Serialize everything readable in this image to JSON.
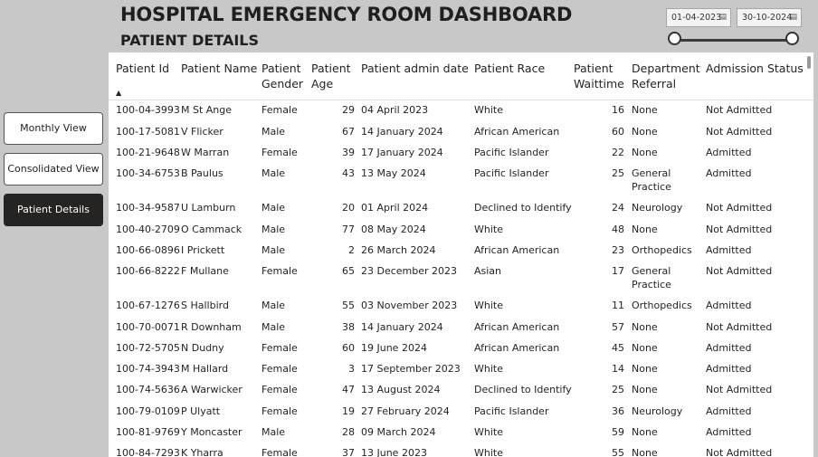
{
  "header": {
    "title": "HOSPITAL EMERGENCY ROOM DASHBOARD",
    "subtitle": "PATIENT DETAILS"
  },
  "date_range": {
    "start": "01-04-2023",
    "end": "30-10-2024",
    "calendar_icon": "calendar-icon"
  },
  "nav": {
    "monthly": "Monthly View",
    "consolidated": "Consolidated View",
    "patient_details": "Patient Details"
  },
  "table": {
    "columns": [
      "Patient Id",
      "Patient Name",
      "Patient Gender",
      "Patient Age",
      "Patient admin date",
      "Patient Race",
      "Patient Waittime",
      "Department Referral",
      "Admission Status"
    ],
    "rows": [
      [
        "100-04-3993",
        "M St Ange",
        "Female",
        "29",
        "04 April 2023",
        "White",
        "16",
        "None",
        "Not Admitted"
      ],
      [
        "100-17-5081",
        "V Flicker",
        "Male",
        "67",
        "14 January 2024",
        "African American",
        "60",
        "None",
        "Not Admitted"
      ],
      [
        "100-21-9648",
        "W Marran",
        "Female",
        "39",
        "17 January 2024",
        "Pacific Islander",
        "22",
        "None",
        "Admitted"
      ],
      [
        "100-34-6753",
        "B Paulus",
        "Male",
        "43",
        "13 May 2024",
        "Pacific Islander",
        "25",
        "General Practice",
        "Admitted"
      ],
      [
        "100-34-9587",
        "U Lamburn",
        "Male",
        "20",
        "01 April 2024",
        "Declined to Identify",
        "24",
        "Neurology",
        "Not Admitted"
      ],
      [
        "100-40-2709",
        "O Cammack",
        "Male",
        "77",
        "08 May 2024",
        "White",
        "48",
        "None",
        "Not Admitted"
      ],
      [
        "100-66-0896",
        "I Prickett",
        "Male",
        "2",
        "26 March 2024",
        "African American",
        "23",
        "Orthopedics",
        "Admitted"
      ],
      [
        "100-66-8222",
        "F Mullane",
        "Female",
        "65",
        "23 December 2023",
        "Asian",
        "17",
        "General Practice",
        "Not Admitted"
      ],
      [
        "100-67-1276",
        "S Hallbird",
        "Male",
        "55",
        "03 November 2023",
        "White",
        "11",
        "Orthopedics",
        "Admitted"
      ],
      [
        "100-70-0071",
        "R Downham",
        "Male",
        "38",
        "14 January 2024",
        "African American",
        "57",
        "None",
        "Not Admitted"
      ],
      [
        "100-72-5705",
        "N Dudny",
        "Female",
        "60",
        "19 June 2024",
        "African American",
        "45",
        "None",
        "Admitted"
      ],
      [
        "100-74-3943",
        "M Hallard",
        "Female",
        "3",
        "17 September 2023",
        "White",
        "14",
        "None",
        "Admitted"
      ],
      [
        "100-74-5636",
        "A Warwicker",
        "Female",
        "47",
        "13 August 2024",
        "Declined to Identify",
        "25",
        "None",
        "Not Admitted"
      ],
      [
        "100-79-0109",
        "P Ulyatt",
        "Female",
        "19",
        "27 February 2024",
        "Pacific Islander",
        "36",
        "Neurology",
        "Admitted"
      ],
      [
        "100-81-9769",
        "Y Moncaster",
        "Male",
        "28",
        "09 March 2024",
        "White",
        "59",
        "None",
        "Admitted"
      ],
      [
        "100-84-7293",
        "K Yharra",
        "Female",
        "37",
        "13 June 2023",
        "White",
        "55",
        "None",
        "Not Admitted"
      ]
    ]
  }
}
